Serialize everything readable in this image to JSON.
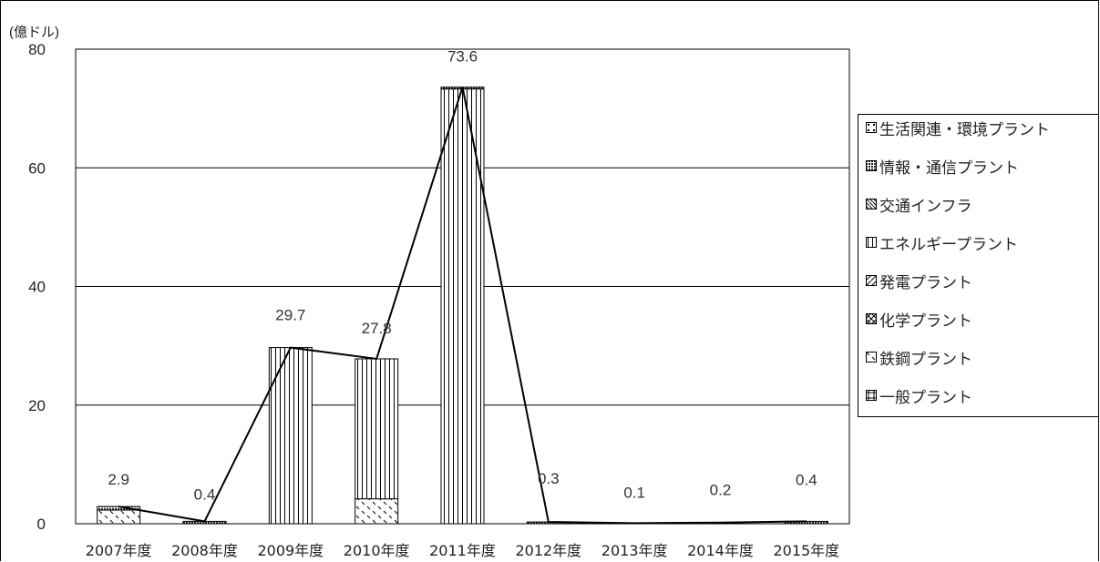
{
  "chart_data": {
    "type": "bar",
    "stacked": true,
    "y_unit_label": "(億ドル)",
    "ylim": [
      0,
      80
    ],
    "y_ticks": [
      0,
      20,
      40,
      60,
      80
    ],
    "grid": true,
    "legend_position": "right",
    "categories": [
      "2007年度",
      "2008年度",
      "2009年度",
      "2010年度",
      "2011年度",
      "2012年度",
      "2013年度",
      "2014年度",
      "2015年度"
    ],
    "series": [
      {
        "name": "一般プラント",
        "pattern": "grid",
        "values": [
          0,
          0,
          0,
          0,
          0,
          0,
          0,
          0,
          0
        ]
      },
      {
        "name": "鉄鋼プラント",
        "pattern": "diag-dash",
        "values": [
          2.3,
          0,
          0,
          4.2,
          0,
          0,
          0,
          0,
          0
        ]
      },
      {
        "name": "化学プラント",
        "pattern": "cross",
        "values": [
          0,
          0,
          0,
          0,
          0,
          0,
          0,
          0,
          0
        ]
      },
      {
        "name": "発電プラント",
        "pattern": "diag",
        "values": [
          0,
          0,
          0,
          0,
          0,
          0,
          0,
          0,
          0
        ]
      },
      {
        "name": "エネルギープラント",
        "pattern": "vertical",
        "values": [
          0,
          0,
          29.7,
          23.6,
          73.3,
          0,
          0,
          0,
          0
        ]
      },
      {
        "name": "交通インフラ",
        "pattern": "diag-dense",
        "values": [
          0,
          0,
          0,
          0,
          0,
          0,
          0,
          0,
          0
        ]
      },
      {
        "name": "情報・通信プラント",
        "pattern": "dots",
        "values": [
          0.6,
          0.4,
          0,
          0,
          0.3,
          0.3,
          0.1,
          0.2,
          0.4
        ]
      },
      {
        "name": "生活関連・環境プラント",
        "pattern": "dot-sparse",
        "values": [
          0,
          0,
          0,
          0,
          0,
          0,
          0,
          0,
          0
        ]
      }
    ],
    "totals": [
      2.9,
      0.4,
      29.7,
      27.8,
      73.6,
      0.3,
      0.1,
      0.2,
      0.4
    ],
    "total_labels": [
      "2.9",
      "0.4",
      "29.7",
      "27.8",
      "73.6",
      "0.3",
      "0.1",
      "0.2",
      "0.4"
    ],
    "legend_order": [
      "生活関連・環境プラント",
      "情報・通信プラント",
      "交通インフラ",
      "エネルギープラント",
      "発電プラント",
      "化学プラント",
      "鉄鋼プラント",
      "一般プラント"
    ]
  }
}
